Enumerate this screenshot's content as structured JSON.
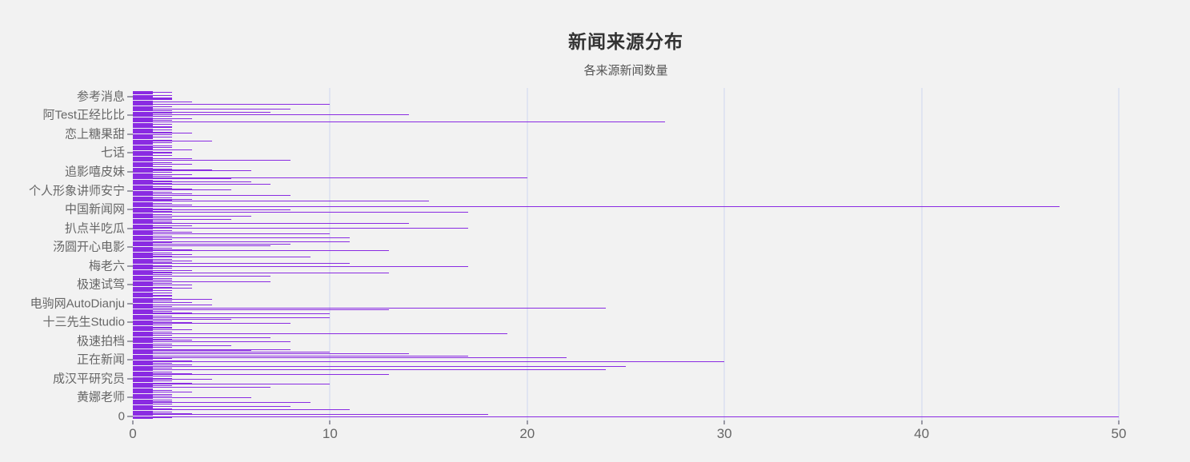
{
  "chart_data": {
    "type": "bar",
    "orientation": "horizontal",
    "title": "新闻来源分布",
    "subtitle": "各来源新闻数量",
    "xlabel": "",
    "ylabel": "",
    "xlim": [
      0,
      50
    ],
    "xticks": [
      0,
      10,
      20,
      30,
      40,
      50
    ],
    "grid": "vertical-only",
    "legend": "none",
    "bar_color": "#8a2be2",
    "gridline_color": "#e0e4f1",
    "background_color": "#f2f2f2",
    "ytick_labels": [
      "参考消息",
      "阿Test正经比比",
      "恋上糖果甜",
      "七话",
      "追影嘻皮妹",
      "个人形象讲师安宁",
      "中国新闻网",
      "扒点半吃瓜",
      "汤圆开心电影",
      "梅老六",
      "极速试驾",
      "电驹网AutoDianju",
      "十三先生Studio",
      "极速拍档",
      "正在新闻",
      "成汉平研究员",
      "黄娜老师",
      "0"
    ],
    "values_order": "top_to_bottom",
    "values_estimated": true,
    "values": [
      1,
      2,
      1,
      1,
      2,
      1,
      1,
      2,
      2,
      2,
      1,
      3,
      1,
      1,
      10,
      1,
      2,
      1,
      1,
      8,
      1,
      2,
      7,
      2,
      1,
      14,
      1,
      2,
      1,
      3,
      1,
      2,
      1,
      27,
      1,
      2,
      1,
      1,
      2,
      2,
      1,
      2,
      1,
      1,
      2,
      3,
      2,
      1,
      1,
      2,
      1,
      1,
      2,
      4,
      1,
      2,
      1,
      1,
      2,
      1,
      2,
      1,
      1,
      3,
      1,
      2,
      2,
      1,
      1,
      2,
      1,
      1,
      3,
      1,
      8,
      1,
      2,
      1,
      3,
      1,
      1,
      2,
      1,
      2,
      4,
      6,
      1,
      2,
      1,
      3,
      1,
      2,
      1,
      20,
      5,
      1,
      2,
      6,
      1,
      2,
      7,
      1,
      2,
      1,
      2,
      3,
      5,
      1,
      2,
      1,
      3,
      1,
      8,
      1,
      2,
      1,
      3,
      2,
      15,
      1,
      2,
      1,
      3,
      1,
      47,
      1,
      2,
      8,
      1,
      2,
      17,
      1,
      2,
      1,
      6,
      1,
      2,
      5,
      1,
      2,
      1,
      2,
      14,
      1,
      3,
      1,
      2,
      17,
      1,
      2,
      1,
      3,
      1,
      10,
      1,
      2,
      1,
      11,
      1,
      2,
      1,
      11,
      2,
      1,
      8,
      1,
      7,
      1,
      2,
      1,
      3,
      13,
      1,
      2,
      1,
      3,
      1,
      2,
      9,
      1,
      2,
      1,
      3,
      1,
      2,
      11,
      1,
      2,
      17,
      1,
      2,
      1,
      3,
      1,
      2,
      13,
      1,
      2,
      7,
      1,
      1,
      2,
      1,
      2,
      7,
      1,
      2,
      1,
      3,
      1,
      2,
      3,
      1,
      1,
      2,
      1,
      2,
      1,
      1,
      2,
      2,
      1,
      2,
      4,
      1,
      2,
      1,
      3,
      1,
      4,
      1,
      2,
      1,
      24,
      13,
      1,
      2,
      1,
      3,
      10,
      1,
      2,
      1,
      10,
      1,
      5,
      2,
      1,
      3,
      8,
      1,
      2,
      1,
      2,
      2,
      1,
      3,
      1,
      2,
      1,
      19,
      1,
      2,
      1,
      7,
      1,
      2,
      3,
      1,
      8,
      1,
      2,
      1,
      5,
      1,
      2,
      1,
      8,
      6,
      1,
      10,
      1,
      14,
      1,
      17,
      1,
      22,
      2,
      1,
      3,
      30,
      1,
      2,
      1,
      3,
      25,
      1,
      2,
      1,
      24,
      1,
      2,
      1,
      3,
      13,
      1,
      2,
      1,
      2,
      4,
      1,
      2,
      1,
      3,
      10,
      1,
      2,
      1,
      7,
      1,
      1,
      2,
      1,
      3,
      1,
      2,
      1,
      2,
      1,
      6,
      1,
      2,
      1,
      2,
      9,
      1,
      2,
      1,
      8,
      1,
      1,
      2,
      11,
      1,
      2,
      1,
      3,
      18,
      1,
      50,
      2,
      1
    ]
  }
}
